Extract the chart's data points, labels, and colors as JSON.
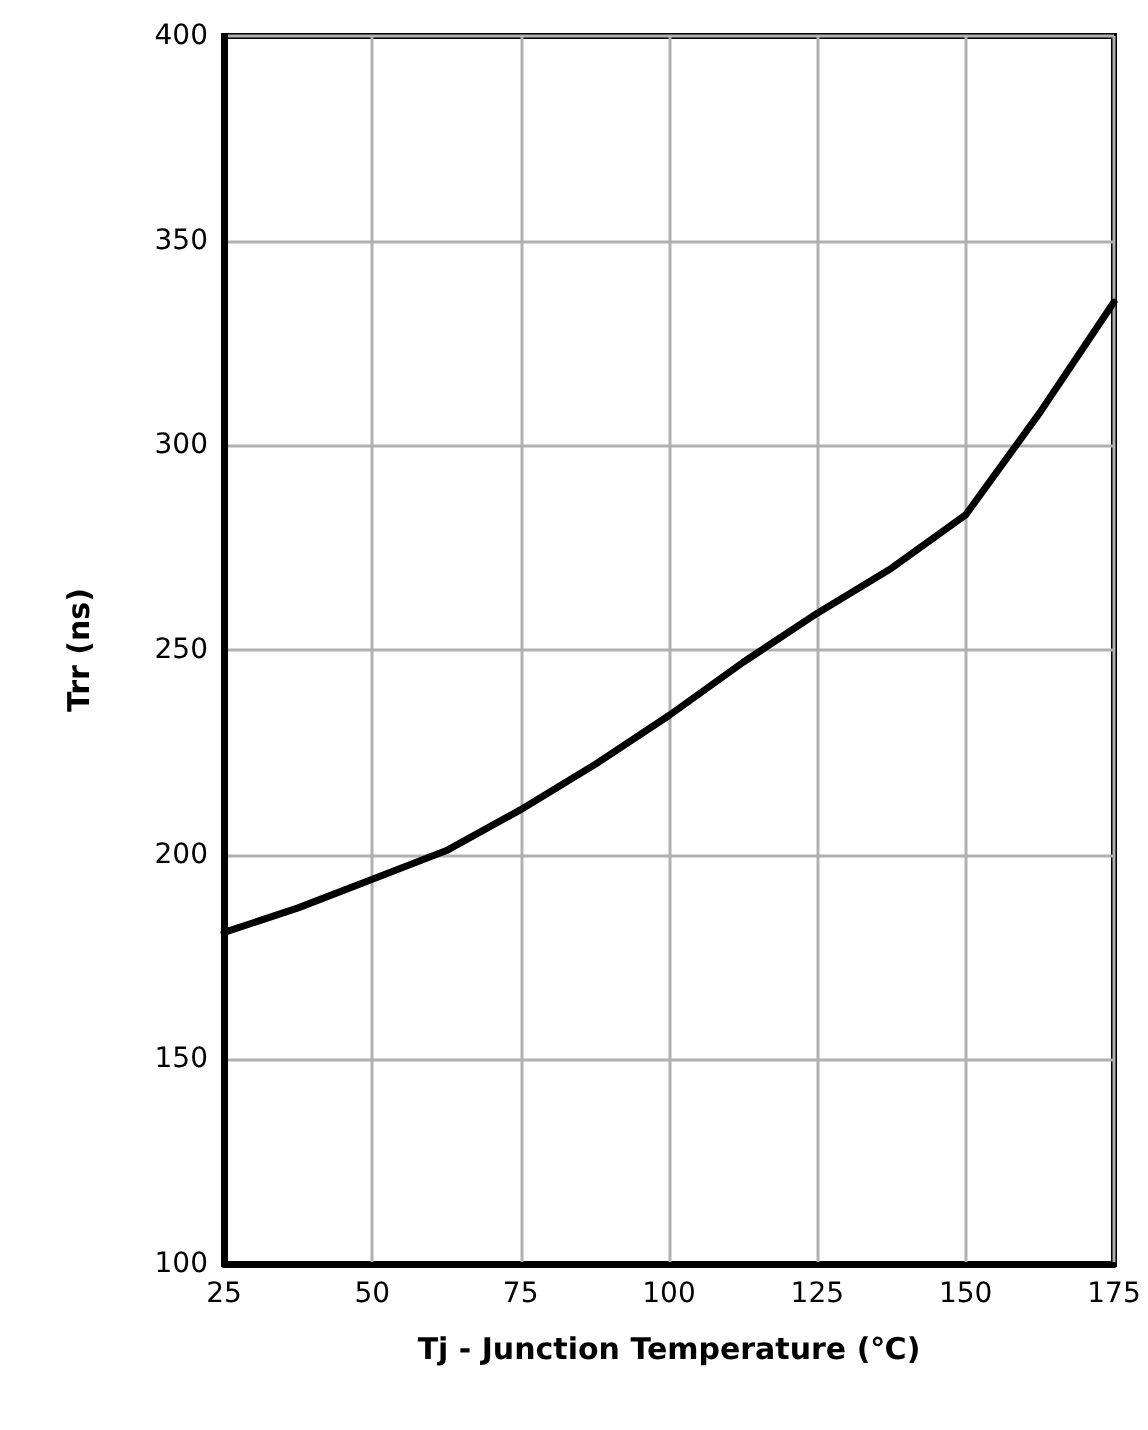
{
  "chart_data": {
    "type": "line",
    "xlabel": "Tj - Junction Temperature (℃)",
    "ylabel": "Trr (ns)",
    "x": [
      25,
      37.5,
      50,
      62.5,
      75,
      87.5,
      100,
      112.5,
      125,
      137.5,
      150,
      162.5,
      175
    ],
    "series": [
      {
        "color": "#000000",
        "values": [
          181,
          187,
          194,
          201,
          211,
          222,
          234,
          247,
          259,
          270,
          283,
          308,
          335
        ]
      }
    ],
    "xlim": [
      25,
      175
    ],
    "xticks": [
      25,
      50,
      75,
      100,
      125,
      150,
      175
    ],
    "ylim": [
      100,
      400
    ],
    "yticks": [
      100,
      150,
      200,
      250,
      300,
      350,
      400
    ],
    "grid": true,
    "marker": "none",
    "line_style": "solid"
  }
}
